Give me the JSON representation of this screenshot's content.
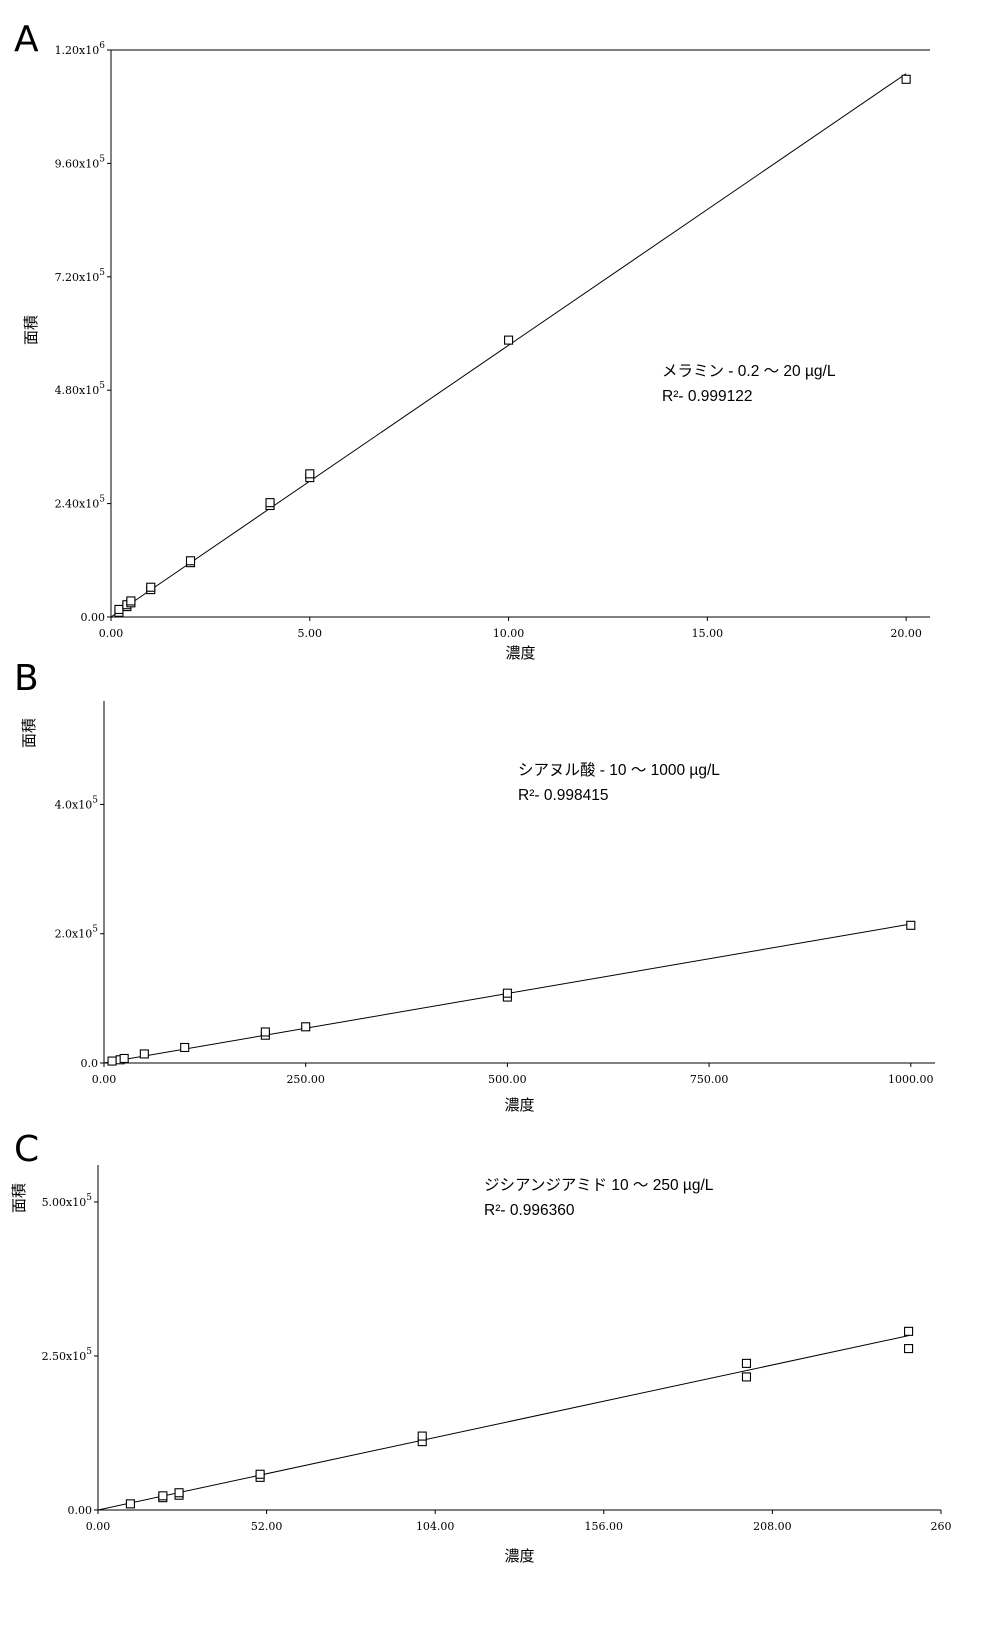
{
  "chart_data": [
    {
      "panel_label": "A",
      "type": "scatter",
      "xlabel": "濃度",
      "ylabel": "面積",
      "xlim": [
        0,
        20.6
      ],
      "ylim": [
        0,
        1200000
      ],
      "xticks": [
        "0.00",
        "5.00",
        "10.00",
        "15.00",
        "20.00"
      ],
      "xtick_values": [
        0,
        5,
        10,
        15,
        20
      ],
      "yticks": [
        {
          "value": 0,
          "base": "0.00",
          "exp": ""
        },
        {
          "value": 240000,
          "base": "2.40x10",
          "exp": "5"
        },
        {
          "value": 480000,
          "base": "4.80x10",
          "exp": "5"
        },
        {
          "value": 720000,
          "base": "7.20x10",
          "exp": "5"
        },
        {
          "value": 960000,
          "base": "9.60x10",
          "exp": "5"
        },
        {
          "value": 1200000,
          "base": "1.20x10",
          "exp": "6"
        }
      ],
      "grid": false,
      "top_border": true,
      "points": [
        [
          0.2,
          10000
        ],
        [
          0.2,
          16000
        ],
        [
          0.4,
          22000
        ],
        [
          0.4,
          26000
        ],
        [
          0.5,
          30000
        ],
        [
          0.5,
          34000
        ],
        [
          1.0,
          58000
        ],
        [
          1.0,
          63000
        ],
        [
          2.0,
          115000
        ],
        [
          2.0,
          119000
        ],
        [
          4.0,
          236000
        ],
        [
          4.0,
          242000
        ],
        [
          5.0,
          295000
        ],
        [
          5.0,
          303000
        ],
        [
          10.0,
          586000
        ],
        [
          20.0,
          1138000
        ]
      ],
      "fit_line": [
        [
          0,
          0
        ],
        [
          20,
          1150000
        ]
      ],
      "annotation": {
        "lines": [
          "メラミン - 0.2 〜 20 µg/L",
          "R²- 0.999122"
        ]
      }
    },
    {
      "panel_label": "B",
      "type": "scatter",
      "xlabel": "濃度",
      "ylabel": "面積",
      "xlim": [
        0,
        1030
      ],
      "ylim": [
        0,
        560000
      ],
      "xticks": [
        "0.00",
        "250.00",
        "500.00",
        "750.00",
        "1000.00"
      ],
      "xtick_values": [
        0,
        250,
        500,
        750,
        1000
      ],
      "yticks": [
        {
          "value": 0,
          "base": "0.0",
          "exp": ""
        },
        {
          "value": 200000,
          "base": "2.0x10",
          "exp": "5"
        },
        {
          "value": 400000,
          "base": "4.0x10",
          "exp": "5"
        }
      ],
      "grid": false,
      "top_border": false,
      "points": [
        [
          10,
          3000
        ],
        [
          20,
          5000
        ],
        [
          25,
          7000
        ],
        [
          50,
          14000
        ],
        [
          100,
          24000
        ],
        [
          200,
          43000
        ],
        [
          200,
          48000
        ],
        [
          250,
          56000
        ],
        [
          500,
          102000
        ],
        [
          500,
          108000
        ],
        [
          1000,
          213000
        ]
      ],
      "fit_line": [
        [
          0,
          0
        ],
        [
          1000,
          215000
        ]
      ],
      "annotation": {
        "lines": [
          "シアヌル酸 - 10 〜 1000 µg/L",
          "R²- 0.998415"
        ]
      }
    },
    {
      "panel_label": "C",
      "type": "scatter",
      "xlabel": "濃度",
      "ylabel": "面積",
      "xlim": [
        0,
        260
      ],
      "ylim": [
        0,
        560000
      ],
      "xticks": [
        "0.00",
        "52.00",
        "104.00",
        "156.00",
        "208.00",
        "260"
      ],
      "xtick_values": [
        0,
        52,
        104,
        156,
        208,
        260
      ],
      "yticks": [
        {
          "value": 0,
          "base": "0.00",
          "exp": ""
        },
        {
          "value": 250000,
          "base": "2.50x10",
          "exp": "5"
        },
        {
          "value": 500000,
          "base": "5.00x10",
          "exp": "5"
        }
      ],
      "grid": false,
      "top_border": false,
      "points": [
        [
          10,
          10000
        ],
        [
          20,
          20000
        ],
        [
          20,
          23000
        ],
        [
          25,
          24000
        ],
        [
          25,
          28000
        ],
        [
          50,
          53000
        ],
        [
          50,
          58000
        ],
        [
          100,
          111000
        ],
        [
          100,
          120000
        ],
        [
          200,
          216000
        ],
        [
          200,
          238000
        ],
        [
          250,
          262000
        ],
        [
          250,
          290000
        ]
      ],
      "fit_line": [
        [
          0,
          0
        ],
        [
          250,
          283000
        ]
      ],
      "annotation": {
        "lines": [
          "ジシアンジアミド 10 〜 250 µg/L",
          "R²- 0.996360"
        ]
      }
    }
  ]
}
